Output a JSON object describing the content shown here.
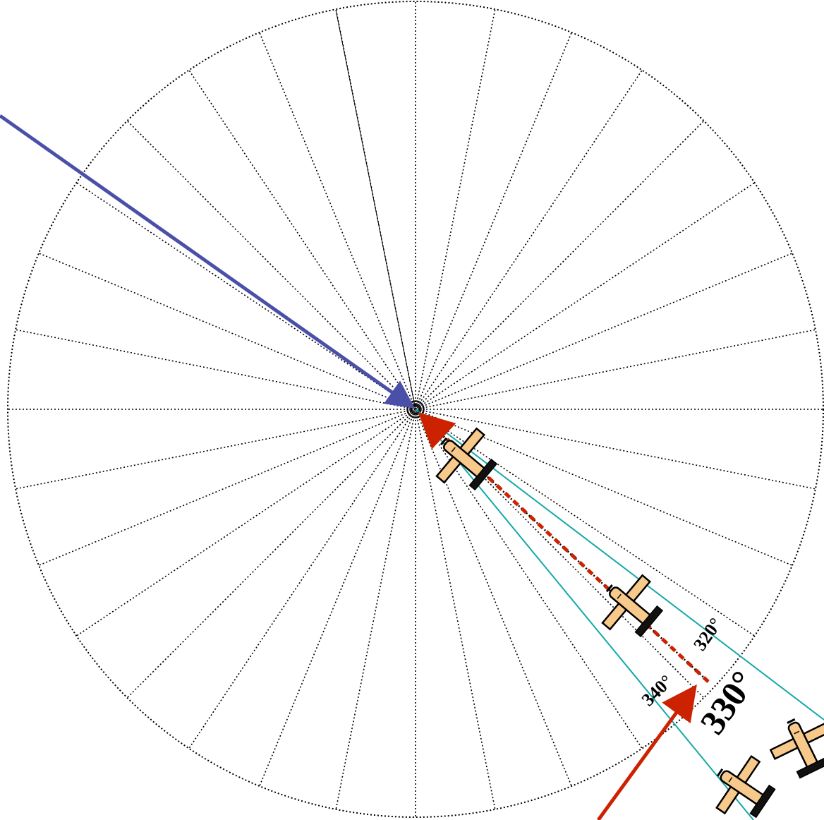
{
  "diagram": {
    "spoke_count": 32,
    "radials": [
      {
        "bearing": 320,
        "label": "320°"
      },
      {
        "bearing": 330,
        "label": "330°"
      },
      {
        "bearing": 340,
        "label": "340°"
      }
    ],
    "colors": {
      "spokes": "#000000",
      "radial_lines": "#14a8a8",
      "inbound_course": "#cc2200",
      "wind_arrow": "#4a4fa8",
      "airplane_fill": "#f7c98a",
      "airplane_stroke": "#000000"
    },
    "icons": [
      "airplane-icon",
      "vor-station-icon"
    ]
  }
}
